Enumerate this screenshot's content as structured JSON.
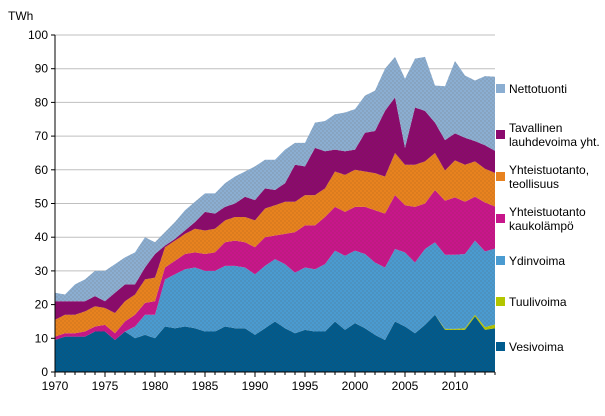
{
  "chart_data": {
    "type": "area",
    "stacked": true,
    "title": "",
    "xlabel": "",
    "ylabel": "TWh",
    "ylim": [
      0,
      100
    ],
    "yticks": [
      0,
      10,
      20,
      30,
      40,
      50,
      60,
      70,
      80,
      90,
      100
    ],
    "xlim": [
      1970,
      2014
    ],
    "xticks": [
      1970,
      1975,
      1980,
      1985,
      1990,
      1995,
      2000,
      2005,
      2010
    ],
    "grid": "horizontal",
    "legend": "right",
    "x": [
      1970,
      1971,
      1972,
      1973,
      1974,
      1975,
      1976,
      1977,
      1978,
      1979,
      1980,
      1981,
      1982,
      1983,
      1984,
      1985,
      1986,
      1987,
      1988,
      1989,
      1990,
      1991,
      1992,
      1993,
      1994,
      1995,
      1996,
      1997,
      1998,
      1999,
      2000,
      2001,
      2002,
      2003,
      2004,
      2005,
      2006,
      2007,
      2008,
      2009,
      2010,
      2011,
      2012,
      2013,
      2014
    ],
    "series": [
      {
        "name": "Vesivoima",
        "color": "#005b8e",
        "values": [
          9.5,
          10.5,
          10.5,
          10.5,
          12,
          12,
          9.5,
          12,
          10,
          11,
          10,
          13.5,
          13,
          13.5,
          13,
          12,
          12,
          13.5,
          13,
          13,
          11,
          13,
          15,
          13,
          11.5,
          12.5,
          12,
          12,
          15,
          12.5,
          14.5,
          13,
          11,
          9.5,
          15,
          13.5,
          11.5,
          14,
          17,
          12.5,
          12.5,
          12.5,
          16.5,
          12.5,
          13
        ]
      },
      {
        "name": "Tuulivoima",
        "color": "#b3c600",
        "values": [
          0,
          0,
          0,
          0,
          0,
          0,
          0,
          0,
          0,
          0,
          0,
          0,
          0,
          0,
          0,
          0,
          0,
          0,
          0,
          0,
          0,
          0,
          0,
          0,
          0,
          0,
          0,
          0,
          0,
          0,
          0,
          0,
          0,
          0,
          0,
          0,
          0,
          0,
          0,
          0.3,
          0.3,
          0.5,
          0.5,
          0.8,
          1.1
        ]
      },
      {
        "name": "Ydinvoima",
        "color": "#4a9bd1",
        "values": [
          0,
          0,
          0,
          0,
          0,
          0,
          0,
          0,
          3.5,
          6,
          7,
          14,
          16,
          17,
          18,
          18,
          18,
          18,
          18.5,
          18,
          18,
          18.5,
          18.5,
          19,
          18,
          18.5,
          18.5,
          20,
          21,
          22,
          21.5,
          22,
          21.5,
          21.5,
          21.5,
          22,
          21,
          22.5,
          21.5,
          22,
          22,
          22,
          22,
          22.5,
          22.5
        ]
      },
      {
        "name": "Yhteistuotanto kaukolämpö",
        "color": "#c8168b",
        "values": [
          1,
          1,
          1,
          1.5,
          1.5,
          2,
          2,
          3,
          3.5,
          3.5,
          4,
          3.5,
          4,
          4.5,
          4.5,
          5,
          5.5,
          7,
          7.5,
          7.5,
          8,
          8.5,
          7,
          9,
          12,
          12.5,
          13,
          14,
          13,
          13,
          13,
          14,
          15.5,
          16,
          16,
          14,
          16.5,
          13.5,
          15.5,
          16,
          17,
          15.5,
          13,
          14.5,
          12.5
        ]
      },
      {
        "name": "Yhteistuotanto, teollisuus",
        "color": "#e8821f",
        "values": [
          5,
          5.5,
          5.5,
          6,
          6,
          5,
          6,
          6,
          6,
          7,
          7,
          6,
          6,
          6,
          7,
          7,
          7,
          6.5,
          7,
          7.5,
          8,
          8.5,
          9,
          9.5,
          9,
          9,
          9,
          8.5,
          10.5,
          11,
          11,
          10.5,
          11,
          11,
          12.5,
          12,
          12.5,
          12.5,
          11,
          9,
          11,
          11,
          10.5,
          10,
          10
        ]
      },
      {
        "name": "Tavallinen lauhdevoima yht.",
        "color": "#8b0a6e",
        "values": [
          5.5,
          4,
          4,
          3,
          3,
          2,
          6,
          5,
          3,
          3.5,
          7,
          0.5,
          0.5,
          1,
          2,
          5.5,
          4.5,
          4,
          4,
          6,
          6,
          6,
          4.5,
          5.5,
          11,
          8.5,
          14,
          11,
          6.5,
          7,
          6,
          11.5,
          12.5,
          19.5,
          16.5,
          5,
          17,
          15,
          9,
          9,
          8,
          8,
          6,
          7,
          6.5
        ]
      },
      {
        "name": "Nettotuonti",
        "color": "#8baed2",
        "values": [
          2.5,
          2,
          5,
          6.5,
          7.5,
          9,
          8.5,
          8,
          9.5,
          9,
          3.5,
          4,
          5,
          6,
          6,
          5.5,
          6,
          7,
          8,
          7.5,
          10,
          8.5,
          9,
          10,
          6.5,
          7,
          7.5,
          9,
          10.5,
          11.5,
          12,
          11,
          12,
          12.5,
          12,
          20.5,
          14.5,
          16,
          11,
          16,
          21.5,
          18.5,
          18,
          20.5,
          22
        ]
      }
    ]
  }
}
